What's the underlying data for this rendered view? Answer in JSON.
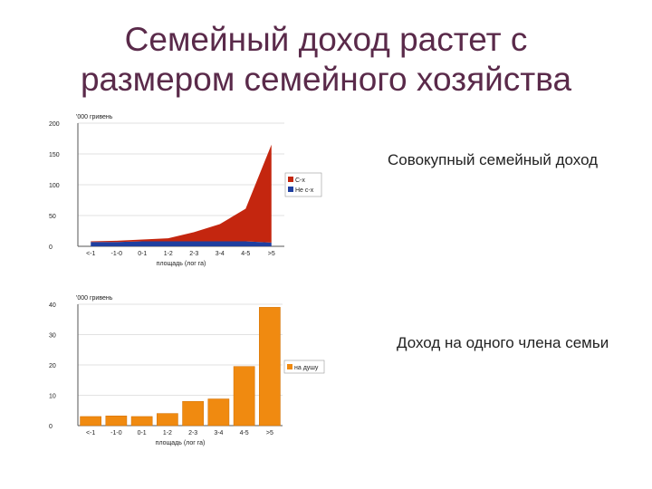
{
  "slide": {
    "title_line1": "Семейный доход растет с",
    "title_line2": "размером семейного хозяйства",
    "caption_top": "Совокупный семейный доход",
    "caption_bottom": "Доход на одного члена семьи"
  },
  "chart_data": [
    {
      "type": "area",
      "unit_label": "'000 гривень",
      "xlabel": "площадь (лог га)",
      "categories": [
        "<-1",
        "-1-0",
        "0-1",
        "1-2",
        "2-3",
        "3-4",
        "4-5",
        ">5"
      ],
      "ylim": [
        0,
        200
      ],
      "yticks": [
        0,
        50,
        100,
        150,
        200
      ],
      "stacked": true,
      "legend_position": "right",
      "series": [
        {
          "name": "Не с-х",
          "color": "#1f3fa0",
          "values": [
            7,
            7,
            8,
            8,
            8,
            8,
            8,
            6
          ]
        },
        {
          "name": "С-х",
          "color": "#c4260f",
          "values": [
            1,
            2,
            3,
            5,
            15,
            28,
            53,
            159
          ]
        }
      ]
    },
    {
      "type": "bar",
      "unit_label": "'000 гривень",
      "xlabel": "площадь (лог га)",
      "categories": [
        "<-1",
        "-1-0",
        "0-1",
        "1-2",
        "2-3",
        "3-4",
        "4-5",
        ">5"
      ],
      "ylim": [
        0,
        40
      ],
      "yticks": [
        0,
        10,
        20,
        30,
        40
      ],
      "legend_position": "right",
      "series": [
        {
          "name": "на душу",
          "color": "#f08a10",
          "values": [
            3,
            3.2,
            3,
            4,
            8,
            8.8,
            19.5,
            39
          ]
        }
      ]
    }
  ]
}
